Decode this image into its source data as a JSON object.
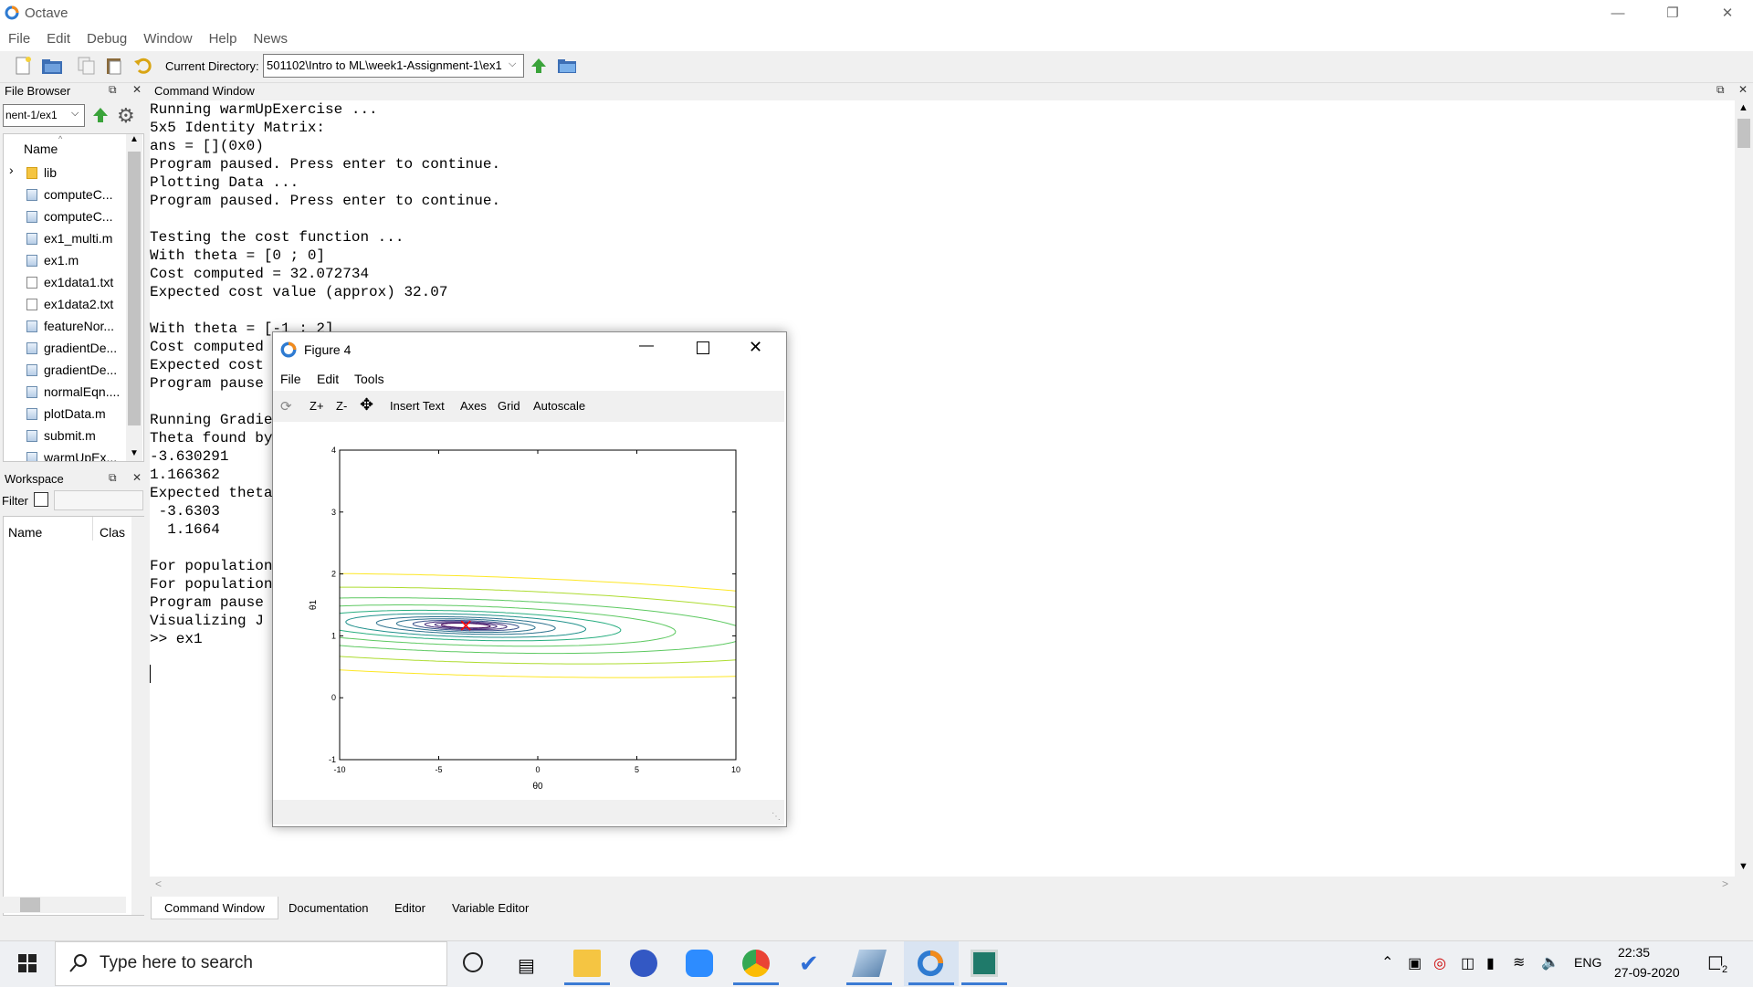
{
  "window": {
    "title": "Octave"
  },
  "menubar": [
    "File",
    "Edit",
    "Debug",
    "Window",
    "Help",
    "News"
  ],
  "toolbar": {
    "current_dir_label": "Current Directory:",
    "current_dir_value": "501102\\Intro to ML\\week1-Assignment-1\\ex1"
  },
  "file_browser": {
    "title": "File Browser",
    "path": "nent-1/ex1",
    "header": "Name",
    "items": [
      {
        "name": "lib",
        "type": "folder"
      },
      {
        "name": "computeC...",
        "type": "m"
      },
      {
        "name": "computeC...",
        "type": "m"
      },
      {
        "name": "ex1_multi.m",
        "type": "m"
      },
      {
        "name": "ex1.m",
        "type": "m"
      },
      {
        "name": "ex1data1.txt",
        "type": "txt"
      },
      {
        "name": "ex1data2.txt",
        "type": "txt"
      },
      {
        "name": "featureNor...",
        "type": "m"
      },
      {
        "name": "gradientDe...",
        "type": "m"
      },
      {
        "name": "gradientDe...",
        "type": "m"
      },
      {
        "name": "normalEqn....",
        "type": "m"
      },
      {
        "name": "plotData.m",
        "type": "m"
      },
      {
        "name": "submit.m",
        "type": "m"
      },
      {
        "name": "warmUpEx...",
        "type": "m"
      }
    ]
  },
  "workspace": {
    "title": "Workspace",
    "filter_label": "Filter",
    "col_name": "Name",
    "col_class": "Clas"
  },
  "command_window": {
    "title": "Command Window",
    "lines": [
      "Running warmUpExercise ...",
      "5x5 Identity Matrix:",
      "ans = [](0x0)",
      "Program paused. Press enter to continue.",
      "Plotting Data ...",
      "Program paused. Press enter to continue.",
      "",
      "Testing the cost function ...",
      "With theta = [0 ; 0]",
      "Cost computed = 32.072734",
      "Expected cost value (approx) 32.07",
      "",
      "With theta = [-1 ; 2]",
      "Cost computed",
      "Expected cost",
      "Program pause",
      "",
      "Running Gradie",
      "Theta found by",
      "-3.630291",
      "1.166362",
      "Expected theta",
      " -3.6303",
      "  1.1664",
      "",
      "For population",
      "For population",
      "Program pause",
      "Visualizing J",
      ">> ex1"
    ]
  },
  "bottom_tabs": [
    "Command Window",
    "Documentation",
    "Editor",
    "Variable Editor"
  ],
  "figure": {
    "title": "Figure 4",
    "menu": [
      "File",
      "Edit",
      "Tools"
    ],
    "toolbar": [
      "Z+",
      "Z-",
      "Insert Text",
      "Axes",
      "Grid",
      "Autoscale"
    ],
    "chart_data": {
      "type": "contour",
      "xlabel": "θ0",
      "ylabel": "θ1",
      "xlim": [
        -10,
        10
      ],
      "ylim": [
        -1,
        4
      ],
      "x_ticks": [
        "-10",
        "-5",
        "0",
        "5",
        "10"
      ],
      "y_ticks": [
        "-1",
        "0",
        "1",
        "2",
        "3",
        "4"
      ],
      "minimum_marker": {
        "x": -3.630291,
        "y": 1.166362,
        "symbol": "x",
        "color": "#ff0000"
      },
      "levels": [
        1.5,
        2.4,
        4.2,
        7,
        12,
        20,
        36,
        60,
        110,
        200,
        380,
        700
      ],
      "colormap": [
        "#440154",
        "#472d7b",
        "#3b528b",
        "#2c728e",
        "#21918c",
        "#28ae80",
        "#5ec962",
        "#addc30",
        "#fde725"
      ]
    }
  },
  "taskbar": {
    "search_placeholder": "Type here to search",
    "language": "ENG",
    "time": "22:35",
    "date": "27-09-2020",
    "notification_count": "2"
  }
}
